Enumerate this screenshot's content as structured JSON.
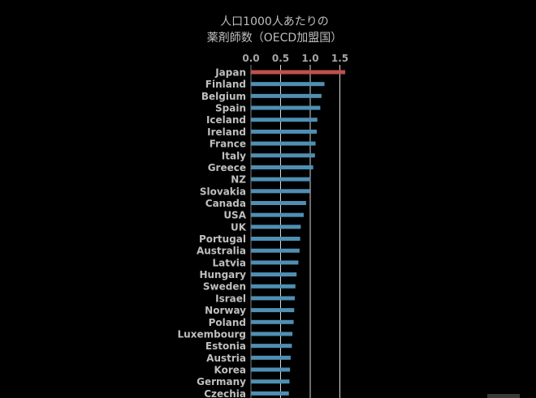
{
  "chart_data": {
    "type": "bar",
    "orientation": "horizontal",
    "title": [
      "人口1000人あたりの",
      "薬剤師数（OECD加盟国）"
    ],
    "xlabel": "",
    "ylabel": "",
    "xlim": [
      0,
      1.65
    ],
    "x_ticks": [
      0,
      0.5,
      1.0,
      1.5
    ],
    "x_tick_labels": [
      "0.0",
      "0.5",
      "1.0",
      "1.5"
    ],
    "x_axis_position": "top",
    "grid": true,
    "legend": "none",
    "categories": [
      "Japan",
      "Finland",
      "Belgium",
      "Spain",
      "Iceland",
      "Ireland",
      "France",
      "Italy",
      "Greece",
      "NZ",
      "Slovakia",
      "Canada",
      "USA",
      "UK",
      "Portugal",
      "Australia",
      "Latvia",
      "Hungary",
      "Sweden",
      "Israel",
      "Norway",
      "Poland",
      "Luxembourg",
      "Estonia",
      "Austria",
      "Korea",
      "Germany",
      "Czechia"
    ],
    "values": [
      1.59,
      1.24,
      1.19,
      1.17,
      1.12,
      1.11,
      1.09,
      1.08,
      1.05,
      1.01,
      0.99,
      0.93,
      0.89,
      0.84,
      0.83,
      0.82,
      0.8,
      0.77,
      0.75,
      0.74,
      0.73,
      0.72,
      0.7,
      0.69,
      0.67,
      0.66,
      0.65,
      0.64
    ],
    "colors": {
      "highlight": "#c0504d",
      "default": "#4f8fb3",
      "gridline": "#d9d9d9"
    },
    "highlight_index": 0
  }
}
